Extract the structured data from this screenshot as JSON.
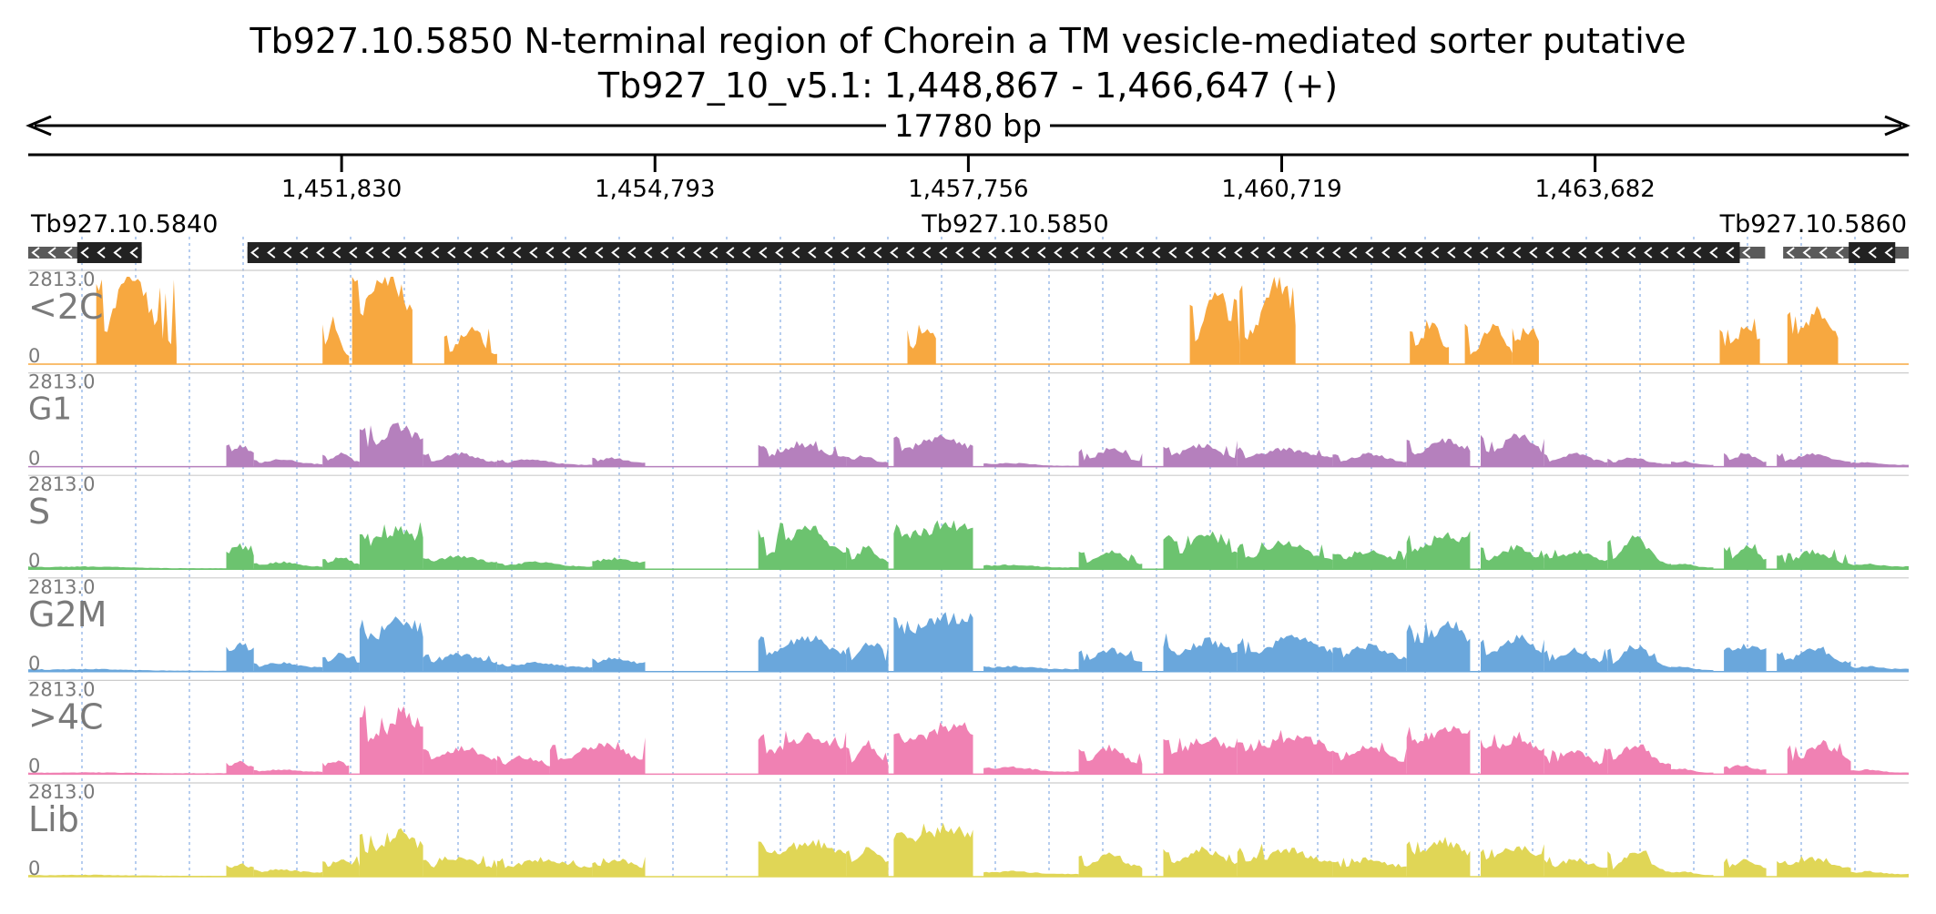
{
  "header": {
    "title": "Tb927.10.5850  N-terminal region of Chorein  a TM vesicle-mediated sorter  putative",
    "locus": "Tb927_10_v5.1: 1,448,867 - 1,466,647 (+)",
    "span_label": "17780 bp"
  },
  "chart_data": {
    "type": "area",
    "x_range": [
      1448867,
      1466647
    ],
    "ticks": [
      {
        "pos": 1451830,
        "label": "1,451,830"
      },
      {
        "pos": 1454793,
        "label": "1,454,793"
      },
      {
        "pos": 1457756,
        "label": "1,457,756"
      },
      {
        "pos": 1460719,
        "label": "1,460,719"
      },
      {
        "pos": 1463682,
        "label": "1,463,682"
      }
    ],
    "genes": [
      {
        "name": "Tb927.10.5840",
        "start": 1448867,
        "end": 1449940,
        "thick_start": 1449330,
        "thick_end": 1449940,
        "strand": "-"
      },
      {
        "name": "Tb927.10.5850",
        "start": 1450940,
        "end": 1465290,
        "thick_start": 1450940,
        "thick_end": 1465050,
        "strand": "-"
      },
      {
        "name": "Tb927.10.5860",
        "start": 1465460,
        "end": 1466647,
        "thick_start": 1466080,
        "thick_end": 1466520,
        "strand": "-"
      }
    ],
    "tracks": [
      {
        "name": "<2C",
        "color": "#f7a840",
        "ylim": [
          0,
          2813.0
        ],
        "max_label": "2813.0",
        "min_label": "0",
        "label_size": "large",
        "segments": [
          [
            1449510,
            1450270,
            0.2,
            1.0,
            0.45
          ],
          [
            1451650,
            1451900,
            0.1,
            0.5,
            0.4
          ],
          [
            1451930,
            1452500,
            0.6,
            1.0,
            0.6
          ],
          [
            1452800,
            1453300,
            0.1,
            0.4,
            0.5
          ],
          [
            1457180,
            1457450,
            0.2,
            0.4,
            0.7
          ],
          [
            1459850,
            1460320,
            0.2,
            0.85,
            0.55
          ],
          [
            1460320,
            1460850,
            0.3,
            1.0,
            0.65
          ],
          [
            1461930,
            1462300,
            0.15,
            0.45,
            0.55
          ],
          [
            1462450,
            1462900,
            0.1,
            0.45,
            0.6
          ],
          [
            1462900,
            1463150,
            0.25,
            0.4,
            0.7
          ],
          [
            1464860,
            1465240,
            0.2,
            0.45,
            0.7
          ],
          [
            1465500,
            1465980,
            0.3,
            0.6,
            0.6
          ]
        ]
      },
      {
        "name": "G1",
        "color": "#b580bd",
        "ylim": [
          0,
          2813.0
        ],
        "max_label": "2813.0",
        "min_label": "0",
        "label_size": "small",
        "segments": [
          [
            1450740,
            1451000,
            0.15,
            0.25,
            0.55
          ],
          [
            1451000,
            1451650,
            0.03,
            0.08,
            0.4
          ],
          [
            1451650,
            1452000,
            0.05,
            0.15,
            0.5
          ],
          [
            1452000,
            1452600,
            0.25,
            0.45,
            0.65
          ],
          [
            1452600,
            1453300,
            0.05,
            0.15,
            0.5
          ],
          [
            1453300,
            1454200,
            0.02,
            0.08,
            0.35
          ],
          [
            1454200,
            1454700,
            0.05,
            0.1,
            0.4
          ],
          [
            1455770,
            1456600,
            0.1,
            0.25,
            0.5
          ],
          [
            1456600,
            1457000,
            0.05,
            0.12,
            0.4
          ],
          [
            1457050,
            1457800,
            0.2,
            0.35,
            0.6
          ],
          [
            1457900,
            1458800,
            0.01,
            0.04,
            0.3
          ],
          [
            1458800,
            1459400,
            0.05,
            0.2,
            0.5
          ],
          [
            1459600,
            1460300,
            0.1,
            0.25,
            0.5
          ],
          [
            1460300,
            1461200,
            0.1,
            0.2,
            0.5
          ],
          [
            1461200,
            1461900,
            0.05,
            0.15,
            0.5
          ],
          [
            1461900,
            1462500,
            0.15,
            0.3,
            0.6
          ],
          [
            1462600,
            1463200,
            0.15,
            0.35,
            0.6
          ],
          [
            1463200,
            1463800,
            0.05,
            0.15,
            0.5
          ],
          [
            1463800,
            1464400,
            0.03,
            0.1,
            0.4
          ],
          [
            1464400,
            1464800,
            0.02,
            0.06,
            0.3
          ],
          [
            1464900,
            1465300,
            0.05,
            0.15,
            0.5
          ],
          [
            1465400,
            1466100,
            0.05,
            0.15,
            0.5
          ],
          [
            1466100,
            1466647,
            0.02,
            0.05,
            0.3
          ]
        ]
      },
      {
        "name": "S",
        "color": "#6cc36f",
        "ylim": [
          0,
          2813.0
        ],
        "max_label": "2813.0",
        "min_label": "0",
        "label_size": "large",
        "segments": [
          [
            1448867,
            1450740,
            0.01,
            0.03,
            0.3
          ],
          [
            1450740,
            1451000,
            0.15,
            0.25,
            0.55
          ],
          [
            1451000,
            1451650,
            0.03,
            0.08,
            0.4
          ],
          [
            1451650,
            1452000,
            0.05,
            0.15,
            0.5
          ],
          [
            1452000,
            1452600,
            0.3,
            0.45,
            0.65
          ],
          [
            1452600,
            1453300,
            0.08,
            0.15,
            0.5
          ],
          [
            1453300,
            1454200,
            0.03,
            0.08,
            0.4
          ],
          [
            1454200,
            1454700,
            0.08,
            0.12,
            0.4
          ],
          [
            1455770,
            1456600,
            0.15,
            0.45,
            0.55
          ],
          [
            1456600,
            1457000,
            0.08,
            0.25,
            0.5
          ],
          [
            1457050,
            1457800,
            0.4,
            0.5,
            0.7
          ],
          [
            1457900,
            1458800,
            0.02,
            0.05,
            0.3
          ],
          [
            1458800,
            1459400,
            0.05,
            0.2,
            0.5
          ],
          [
            1459600,
            1460300,
            0.15,
            0.4,
            0.6
          ],
          [
            1460300,
            1461200,
            0.1,
            0.3,
            0.5
          ],
          [
            1461200,
            1461900,
            0.1,
            0.2,
            0.5
          ],
          [
            1461900,
            1462500,
            0.2,
            0.4,
            0.6
          ],
          [
            1462600,
            1463200,
            0.1,
            0.25,
            0.55
          ],
          [
            1463200,
            1463800,
            0.1,
            0.2,
            0.5
          ],
          [
            1463800,
            1464400,
            0.05,
            0.35,
            0.45
          ],
          [
            1464400,
            1464800,
            0.02,
            0.06,
            0.3
          ],
          [
            1464900,
            1465300,
            0.1,
            0.25,
            0.55
          ],
          [
            1465400,
            1466100,
            0.05,
            0.2,
            0.5
          ],
          [
            1466100,
            1466647,
            0.03,
            0.06,
            0.3
          ]
        ]
      },
      {
        "name": "G2M",
        "color": "#6aa7dc",
        "ylim": [
          0,
          2813.0
        ],
        "max_label": "2813.0",
        "min_label": "0",
        "label_size": "large",
        "segments": [
          [
            1448867,
            1450740,
            0.01,
            0.03,
            0.3
          ],
          [
            1450740,
            1451000,
            0.25,
            0.3,
            0.6
          ],
          [
            1451000,
            1451650,
            0.05,
            0.1,
            0.4
          ],
          [
            1451650,
            1452000,
            0.1,
            0.2,
            0.5
          ],
          [
            1452000,
            1452600,
            0.4,
            0.6,
            0.7
          ],
          [
            1452600,
            1453300,
            0.1,
            0.2,
            0.5
          ],
          [
            1453300,
            1454200,
            0.05,
            0.1,
            0.4
          ],
          [
            1454200,
            1454700,
            0.1,
            0.15,
            0.4
          ],
          [
            1455770,
            1456600,
            0.2,
            0.4,
            0.55
          ],
          [
            1456600,
            1457000,
            0.1,
            0.3,
            0.5
          ],
          [
            1457050,
            1457800,
            0.5,
            0.6,
            0.7
          ],
          [
            1457900,
            1458800,
            0.03,
            0.06,
            0.3
          ],
          [
            1458800,
            1459400,
            0.1,
            0.25,
            0.5
          ],
          [
            1459600,
            1460300,
            0.2,
            0.35,
            0.6
          ],
          [
            1460300,
            1461200,
            0.2,
            0.4,
            0.6
          ],
          [
            1461200,
            1461900,
            0.15,
            0.3,
            0.5
          ],
          [
            1461900,
            1462500,
            0.3,
            0.55,
            0.65
          ],
          [
            1462600,
            1463200,
            0.2,
            0.4,
            0.6
          ],
          [
            1463200,
            1463800,
            0.1,
            0.25,
            0.5
          ],
          [
            1463800,
            1464400,
            0.05,
            0.3,
            0.45
          ],
          [
            1464400,
            1464800,
            0.02,
            0.06,
            0.3
          ],
          [
            1464900,
            1465300,
            0.25,
            0.3,
            0.6
          ],
          [
            1465400,
            1466100,
            0.1,
            0.25,
            0.5
          ],
          [
            1466100,
            1466647,
            0.03,
            0.06,
            0.3
          ]
        ]
      },
      {
        "name": ">4C",
        "color": "#f081b3",
        "ylim": [
          0,
          2813.0
        ],
        "max_label": "2813.0",
        "min_label": "0",
        "label_size": "large",
        "segments": [
          [
            1448867,
            1450740,
            0.01,
            0.02,
            0.3
          ],
          [
            1450740,
            1451000,
            0.08,
            0.15,
            0.5
          ],
          [
            1451000,
            1451650,
            0.03,
            0.05,
            0.4
          ],
          [
            1451650,
            1451900,
            0.1,
            0.15,
            0.5
          ],
          [
            1452000,
            1452600,
            0.4,
            0.7,
            0.7
          ],
          [
            1452600,
            1453300,
            0.15,
            0.3,
            0.55
          ],
          [
            1453300,
            1453800,
            0.1,
            0.2,
            0.5
          ],
          [
            1453800,
            1454700,
            0.15,
            0.35,
            0.55
          ],
          [
            1455770,
            1456600,
            0.25,
            0.45,
            0.6
          ],
          [
            1456600,
            1457000,
            0.1,
            0.35,
            0.5
          ],
          [
            1457050,
            1457800,
            0.4,
            0.55,
            0.7
          ],
          [
            1457900,
            1458800,
            0.03,
            0.08,
            0.3
          ],
          [
            1458800,
            1459400,
            0.1,
            0.3,
            0.5
          ],
          [
            1459600,
            1460300,
            0.25,
            0.4,
            0.6
          ],
          [
            1460300,
            1461200,
            0.25,
            0.45,
            0.6
          ],
          [
            1461200,
            1461900,
            0.15,
            0.3,
            0.5
          ],
          [
            1461900,
            1462500,
            0.35,
            0.55,
            0.65
          ],
          [
            1462600,
            1463200,
            0.25,
            0.4,
            0.6
          ],
          [
            1463200,
            1463800,
            0.1,
            0.25,
            0.5
          ],
          [
            1463800,
            1464400,
            0.1,
            0.35,
            0.45
          ],
          [
            1464400,
            1464800,
            0.02,
            0.06,
            0.3
          ],
          [
            1464900,
            1465300,
            0.05,
            0.1,
            0.4
          ],
          [
            1465500,
            1466100,
            0.15,
            0.35,
            0.55
          ],
          [
            1466100,
            1466647,
            0.02,
            0.05,
            0.3
          ]
        ]
      },
      {
        "name": "Lib",
        "color": "#e0d656",
        "ylim": [
          0,
          2813.0
        ],
        "max_label": "2813.0",
        "min_label": "0",
        "label_size": "large",
        "segments": [
          [
            1448867,
            1450740,
            0.01,
            0.02,
            0.3
          ],
          [
            1450740,
            1451000,
            0.1,
            0.15,
            0.5
          ],
          [
            1451000,
            1451650,
            0.05,
            0.08,
            0.4
          ],
          [
            1451650,
            1452000,
            0.1,
            0.2,
            0.5
          ],
          [
            1452000,
            1452600,
            0.3,
            0.5,
            0.65
          ],
          [
            1452600,
            1453300,
            0.1,
            0.2,
            0.5
          ],
          [
            1453300,
            1454200,
            0.1,
            0.2,
            0.5
          ],
          [
            1454200,
            1454700,
            0.1,
            0.2,
            0.5
          ],
          [
            1455770,
            1456600,
            0.25,
            0.4,
            0.6
          ],
          [
            1456600,
            1457000,
            0.15,
            0.3,
            0.55
          ],
          [
            1457050,
            1457800,
            0.45,
            0.55,
            0.7
          ],
          [
            1457900,
            1458800,
            0.03,
            0.06,
            0.3
          ],
          [
            1458800,
            1459400,
            0.1,
            0.25,
            0.5
          ],
          [
            1459600,
            1460300,
            0.15,
            0.3,
            0.55
          ],
          [
            1460300,
            1461200,
            0.15,
            0.3,
            0.55
          ],
          [
            1461200,
            1461900,
            0.1,
            0.2,
            0.5
          ],
          [
            1461900,
            1462500,
            0.25,
            0.4,
            0.6
          ],
          [
            1462600,
            1463200,
            0.2,
            0.35,
            0.6
          ],
          [
            1463200,
            1463800,
            0.1,
            0.2,
            0.5
          ],
          [
            1463800,
            1464400,
            0.05,
            0.3,
            0.45
          ],
          [
            1464400,
            1464800,
            0.02,
            0.06,
            0.3
          ],
          [
            1464900,
            1465300,
            0.1,
            0.2,
            0.5
          ],
          [
            1465400,
            1466100,
            0.1,
            0.2,
            0.5
          ],
          [
            1466100,
            1466647,
            0.03,
            0.06,
            0.3
          ]
        ]
      }
    ]
  }
}
